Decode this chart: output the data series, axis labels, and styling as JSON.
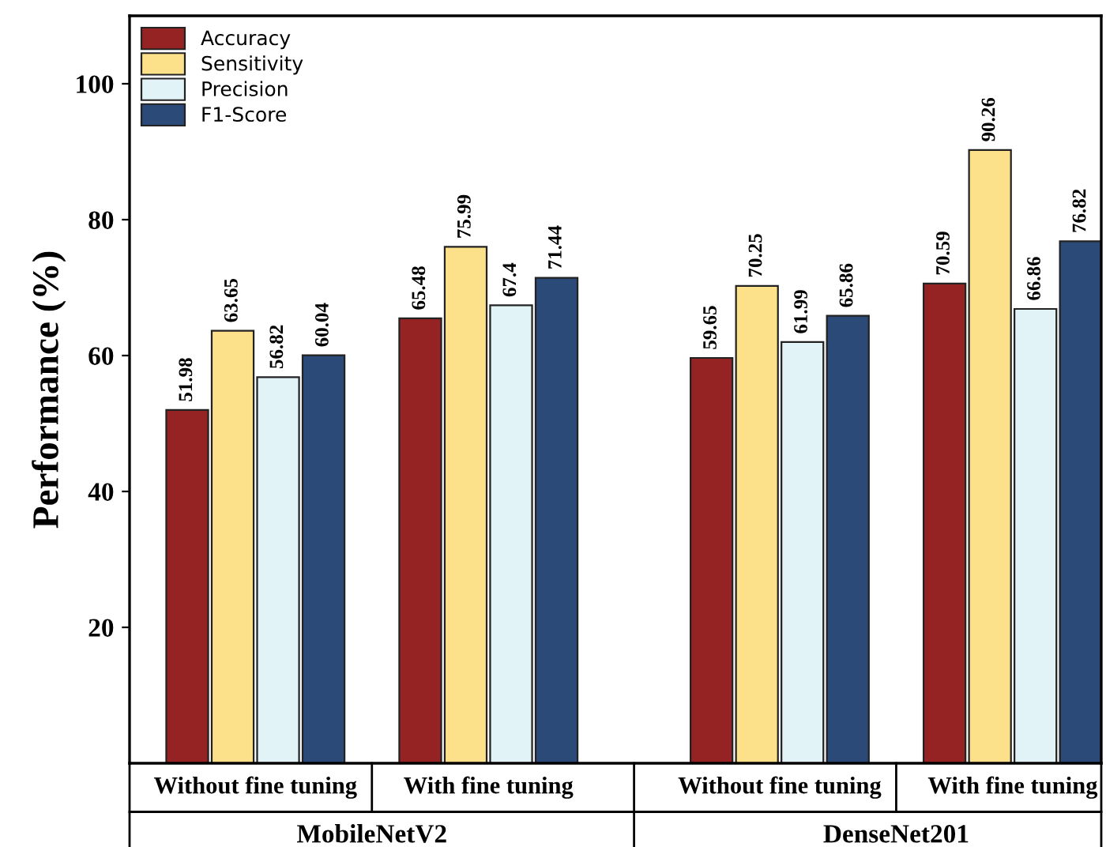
{
  "chart_data": {
    "type": "bar",
    "ylabel": "Performance (%)",
    "categories": [
      "Without fine tuning",
      "With fine tuning",
      "Without fine tuning",
      "With fine tuning"
    ],
    "annotations": [
      "MobileNetV2",
      "DenseNet201"
    ],
    "series": [
      {
        "name": "Accuracy",
        "color": "#962323",
        "values": [
          51.98,
          65.48,
          59.65,
          70.59
        ]
      },
      {
        "name": "Sensitivity",
        "color": "#fde08a",
        "values": [
          63.65,
          75.99,
          70.25,
          90.26
        ]
      },
      {
        "name": "Precision",
        "color": "#e2f3f8",
        "values": [
          56.82,
          67.4,
          61.99,
          66.86
        ]
      },
      {
        "name": "F1-Score",
        "color": "#2c4a78",
        "values": [
          60.04,
          71.44,
          65.86,
          76.82
        ]
      }
    ],
    "ylim": [
      0,
      110
    ],
    "yticks": [
      20,
      40,
      60,
      80,
      100
    ],
    "data_labels": true,
    "grid": false,
    "legend": "top left"
  }
}
